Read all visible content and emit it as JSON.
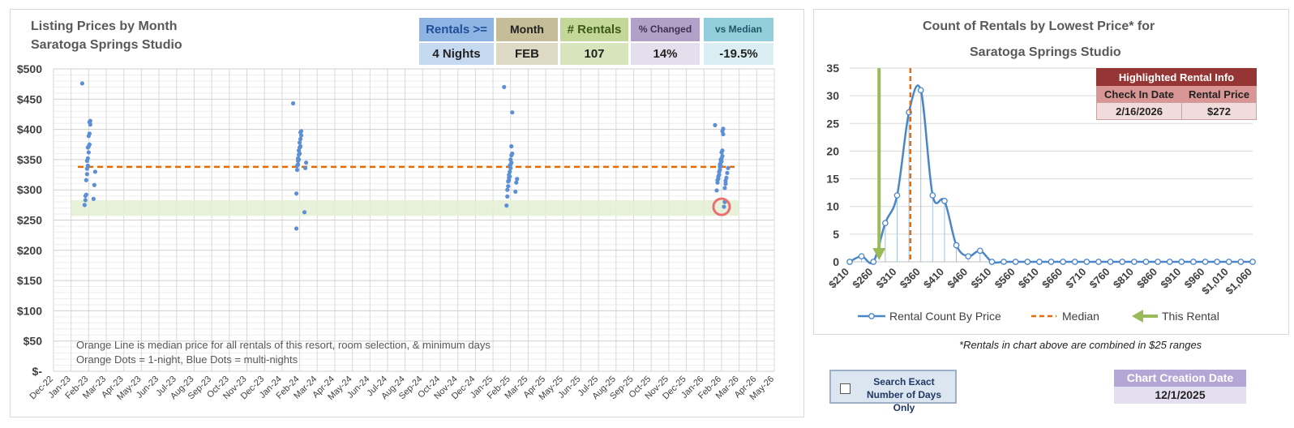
{
  "left": {
    "title_line1": "Listing Prices by Month",
    "title_line2": "Saratoga Springs Studio",
    "stats": [
      {
        "header": "Rentals >=",
        "value": "4 Nights",
        "hbg": "#8db4e2",
        "vbg": "#c5d9f1",
        "hcolor": "#1f4e9b"
      },
      {
        "header": "Month",
        "value": "FEB",
        "hbg": "#c4bd97",
        "vbg": "#ddd9c4",
        "hcolor": "#222222"
      },
      {
        "header": "# Rentals",
        "value": "107",
        "hbg": "#c4d79b",
        "vbg": "#d8e4bc",
        "hcolor": "#3a5a18"
      },
      {
        "header": "% Changed",
        "value": "14%",
        "hbg": "#b1a0c7",
        "vbg": "#e4dfec",
        "hcolor": "#403151"
      },
      {
        "header": "vs Median",
        "value": "-19.5%",
        "hbg": "#92cddc",
        "vbg": "#daeef3",
        "hcolor": "#215868"
      }
    ],
    "note_line1": "Orange Line is median price for all rentals of this resort, room selection, & minimum days",
    "note_line2": "Orange Dots = 1-night, Blue Dots = multi-nights"
  },
  "right": {
    "title_line1": "Count of Rentals by Lowest Price* for",
    "title_line2": "Saratoga Springs Studio",
    "highlight": {
      "header": "Highlighted Rental Info",
      "col1": "Check In Date",
      "col2": "Rental Price",
      "val1": "2/16/2026",
      "val2": "$272"
    },
    "legend": {
      "series": "Rental Count By Price",
      "median": "Median",
      "this": "This Rental"
    }
  },
  "footnote": "*Rentals in chart above are combined in $25 ranges",
  "exact_checkbox_label": "Search Exact Number of Days Only",
  "creation": {
    "header": "Chart Creation Date",
    "value": "12/1/2025"
  },
  "chart_data": [
    {
      "type": "scatter",
      "ylim": [
        0,
        500
      ],
      "yticks": [
        "$-",
        "$50",
        "$100",
        "$150",
        "$200",
        "$250",
        "$300",
        "$350",
        "$400",
        "$450",
        "$500"
      ],
      "xticks": [
        "Dec-22",
        "Jan-23",
        "Feb-23",
        "Mar-23",
        "Apr-23",
        "May-23",
        "Jun-23",
        "Jul-23",
        "Aug-23",
        "Sep-23",
        "Oct-23",
        "Nov-23",
        "Dec-23",
        "Jan-24",
        "Feb-24",
        "Mar-24",
        "Apr-24",
        "May-24",
        "Jun-24",
        "Jul-24",
        "Aug-24",
        "Sep-24",
        "Oct-24",
        "Nov-24",
        "Dec-24",
        "Jan-25",
        "Feb-25",
        "Mar-25",
        "Apr-25",
        "May-25",
        "Jun-25",
        "Jul-25",
        "Aug-25",
        "Sep-25",
        "Oct-25",
        "Nov-25",
        "Dec-25",
        "Jan-26",
        "Feb-26",
        "Mar-26",
        "Apr-26",
        "May-26"
      ],
      "median": 338,
      "band": [
        257,
        283
      ],
      "highlight_point": {
        "x": "Feb-26",
        "y": 272
      },
      "series": [
        {
          "x": "Feb-23",
          "values": [
            476,
            414,
            412,
            408,
            393,
            389,
            375,
            372,
            370,
            362,
            352,
            348,
            340,
            335,
            330,
            326,
            316,
            308,
            292,
            290,
            285,
            283,
            275
          ]
        },
        {
          "x": "Feb-24",
          "values": [
            443,
            397,
            395,
            390,
            384,
            378,
            372,
            370,
            365,
            360,
            358,
            352,
            350,
            348,
            345,
            342,
            340,
            336,
            333,
            294,
            263,
            236
          ]
        },
        {
          "x": "Feb-25",
          "values": [
            470,
            428,
            372,
            360,
            357,
            350,
            345,
            342,
            340,
            336,
            330,
            325,
            322,
            320,
            318,
            316,
            314,
            312,
            306,
            300,
            297,
            289,
            274
          ]
        },
        {
          "x": "Feb-26",
          "values": [
            407,
            401,
            397,
            392,
            365,
            362,
            356,
            352,
            350,
            347,
            345,
            342,
            340,
            338,
            336,
            333,
            330,
            328,
            325,
            322,
            320,
            318,
            316,
            315,
            312,
            310,
            303,
            299,
            280,
            272
          ]
        }
      ]
    },
    {
      "type": "line",
      "xlabels": [
        "$210",
        "$260",
        "$310",
        "$360",
        "$410",
        "$460",
        "$510",
        "$560",
        "$610",
        "$660",
        "$710",
        "$760",
        "$810",
        "$860",
        "$910",
        "$960",
        "$1,010",
        "$1,060"
      ],
      "x": [
        210,
        235,
        260,
        285,
        310,
        335,
        360,
        385,
        410,
        435,
        460,
        485,
        510,
        535,
        560,
        585,
        610,
        635,
        660,
        685,
        710,
        735,
        760,
        785,
        810,
        835,
        860,
        885,
        910,
        935,
        960,
        985,
        1010,
        1035,
        1060
      ],
      "values": [
        0,
        1,
        0,
        7,
        12,
        27,
        31,
        12,
        11,
        3,
        1,
        2,
        0,
        0,
        0,
        0,
        0,
        0,
        0,
        0,
        0,
        0,
        0,
        0,
        0,
        0,
        0,
        0,
        0,
        0,
        0,
        0,
        0,
        0,
        0
      ],
      "ylim": [
        0,
        35
      ],
      "yticks": [
        0,
        5,
        10,
        15,
        20,
        25,
        30,
        35
      ],
      "median": 338,
      "this_rental": 272
    }
  ]
}
